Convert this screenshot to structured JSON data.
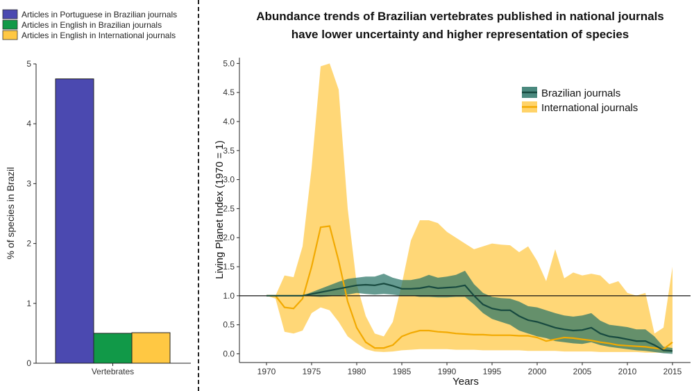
{
  "chart_data": [
    {
      "type": "bar",
      "title": "",
      "xlabel": "",
      "ylabel": "% of species in Brazil",
      "ylim": [
        0,
        5
      ],
      "yticks": [
        "0",
        "1",
        "2",
        "3",
        "4",
        "5"
      ],
      "categories": [
        "Vertebrates"
      ],
      "series": [
        {
          "name": "Articles in Portuguese in Brazilian journals",
          "values": [
            4.75
          ],
          "color": "#4b49b0"
        },
        {
          "name": "Articles in English in Brazilian journals",
          "values": [
            0.5
          ],
          "color": "#119948"
        },
        {
          "name": "Articles in English in International journals",
          "values": [
            0.51
          ],
          "color": "#ffc843"
        }
      ],
      "legend_position": "top-left"
    },
    {
      "type": "line",
      "title_line1": "Abundance trends of Brazilian vertebrates published in national journals",
      "title_line2": "have lower uncertainty and higher representation of species",
      "xlabel": "Years",
      "ylabel": "Living Planet Index (1970 = 1)",
      "xlim": [
        1967,
        2017
      ],
      "ylim": [
        -0.15,
        5.1
      ],
      "xticks": [
        "1970",
        "1975",
        "1980",
        "1985",
        "1990",
        "1995",
        "2000",
        "2005",
        "2010",
        "2015"
      ],
      "yticks": [
        "0.0",
        "0.5",
        "1.0",
        "1.5",
        "2.0",
        "2.5",
        "3.0",
        "3.5",
        "4.0",
        "4.5",
        "5.0"
      ],
      "reference_line": 1.0,
      "legend_position": "top-right",
      "x": [
        1970,
        1971,
        1972,
        1973,
        1974,
        1975,
        1976,
        1977,
        1978,
        1979,
        1980,
        1981,
        1982,
        1983,
        1984,
        1985,
        1986,
        1987,
        1988,
        1989,
        1990,
        1991,
        1992,
        1993,
        1994,
        1995,
        1996,
        1997,
        1998,
        1999,
        2000,
        2001,
        2002,
        2003,
        2004,
        2005,
        2006,
        2007,
        2008,
        2009,
        2010,
        2011,
        2012,
        2013,
        2014,
        2015
      ],
      "series": [
        {
          "name": "Brazilian journals",
          "color": "#17493f",
          "band_color": "#2a7467",
          "values": [
            1,
            1,
            1,
            1,
            1,
            1.03,
            1.06,
            1.09,
            1.12,
            1.15,
            1.18,
            1.19,
            1.18,
            1.21,
            1.17,
            1.12,
            1.12,
            1.13,
            1.16,
            1.13,
            1.14,
            1.15,
            1.18,
            1.0,
            0.85,
            0.78,
            0.75,
            0.75,
            0.65,
            0.58,
            0.55,
            0.5,
            0.45,
            0.42,
            0.4,
            0.41,
            0.45,
            0.35,
            0.3,
            0.28,
            0.25,
            0.22,
            0.22,
            0.15,
            0.06,
            0.05
          ],
          "lower": [
            1,
            1,
            1,
            1,
            1,
            0.99,
            0.98,
            0.99,
            1.0,
            1.02,
            1.05,
            1.03,
            1.02,
            1.03,
            1.02,
            1.0,
            1.0,
            0.98,
            0.98,
            0.97,
            0.97,
            0.98,
            0.98,
            0.85,
            0.7,
            0.6,
            0.55,
            0.5,
            0.4,
            0.35,
            0.3,
            0.27,
            0.22,
            0.2,
            0.18,
            0.17,
            0.2,
            0.15,
            0.12,
            0.1,
            0.08,
            0.06,
            0.05,
            0.03,
            0.01,
            0.0
          ],
          "upper": [
            1,
            1,
            1,
            1,
            1,
            1.06,
            1.12,
            1.18,
            1.24,
            1.29,
            1.31,
            1.33,
            1.33,
            1.38,
            1.31,
            1.27,
            1.27,
            1.3,
            1.36,
            1.31,
            1.33,
            1.36,
            1.43,
            1.2,
            1.05,
            0.98,
            0.96,
            0.95,
            0.9,
            0.82,
            0.8,
            0.75,
            0.7,
            0.66,
            0.64,
            0.66,
            0.7,
            0.57,
            0.5,
            0.48,
            0.46,
            0.42,
            0.42,
            0.3,
            0.12,
            0.1
          ]
        },
        {
          "name": "International journals",
          "color": "#f2a900",
          "band_color": "#ffc843",
          "values": [
            1,
            1,
            0.8,
            0.78,
            0.95,
            1.5,
            2.18,
            2.2,
            1.6,
            0.9,
            0.45,
            0.2,
            0.1,
            0.1,
            0.15,
            0.3,
            0.36,
            0.4,
            0.4,
            0.38,
            0.37,
            0.35,
            0.34,
            0.33,
            0.33,
            0.32,
            0.32,
            0.32,
            0.31,
            0.31,
            0.28,
            0.22,
            0.25,
            0.28,
            0.27,
            0.25,
            0.23,
            0.2,
            0.18,
            0.15,
            0.14,
            0.13,
            0.12,
            0.1,
            0.08,
            0.2
          ],
          "lower": [
            1,
            0.95,
            0.38,
            0.35,
            0.4,
            0.7,
            0.8,
            0.75,
            0.55,
            0.3,
            0.18,
            0.08,
            0.04,
            0.03,
            0.04,
            0.06,
            0.07,
            0.08,
            0.08,
            0.08,
            0.08,
            0.07,
            0.07,
            0.07,
            0.06,
            0.06,
            0.06,
            0.06,
            0.06,
            0.05,
            0.05,
            0.05,
            0.05,
            0.04,
            0.04,
            0.04,
            0.04,
            0.03,
            0.03,
            0.03,
            0.03,
            0.03,
            0.02,
            0.02,
            0.02,
            0.03
          ],
          "upper": [
            1,
            1.0,
            1.35,
            1.32,
            1.85,
            3.2,
            4.95,
            5.0,
            4.55,
            2.5,
            1.2,
            0.65,
            0.35,
            0.3,
            0.55,
            1.2,
            1.95,
            2.3,
            2.3,
            2.25,
            2.1,
            2.0,
            1.9,
            1.8,
            1.85,
            1.9,
            1.88,
            1.87,
            1.75,
            1.85,
            1.6,
            1.25,
            1.8,
            1.3,
            1.4,
            1.35,
            1.38,
            1.35,
            1.2,
            1.25,
            1.05,
            1.0,
            1.05,
            0.35,
            0.45,
            1.5
          ]
        }
      ]
    }
  ]
}
